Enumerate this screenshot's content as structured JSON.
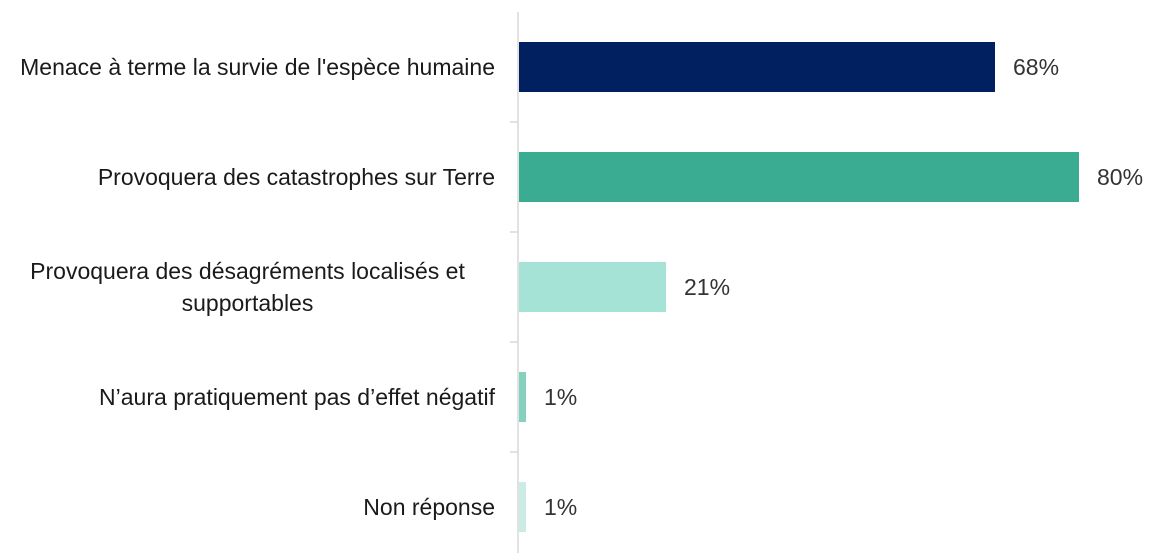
{
  "chart_data": {
    "type": "bar",
    "orientation": "horizontal",
    "categories": [
      "Menace à terme la survie de l'espèce humaine",
      "Provoquera des catastrophes sur Terre",
      "Provoquera des désagréments localisés et supportables",
      "N’aura pratiquement pas d’effet négatif",
      "Non réponse"
    ],
    "values": [
      68,
      80,
      21,
      1,
      1
    ],
    "value_labels": [
      "68%",
      "80%",
      "21%",
      "1%",
      "1%"
    ],
    "colors": [
      "#002060",
      "#3aac92",
      "#a6e3d7",
      "#86d1bd",
      "#c9ece4"
    ]
  }
}
